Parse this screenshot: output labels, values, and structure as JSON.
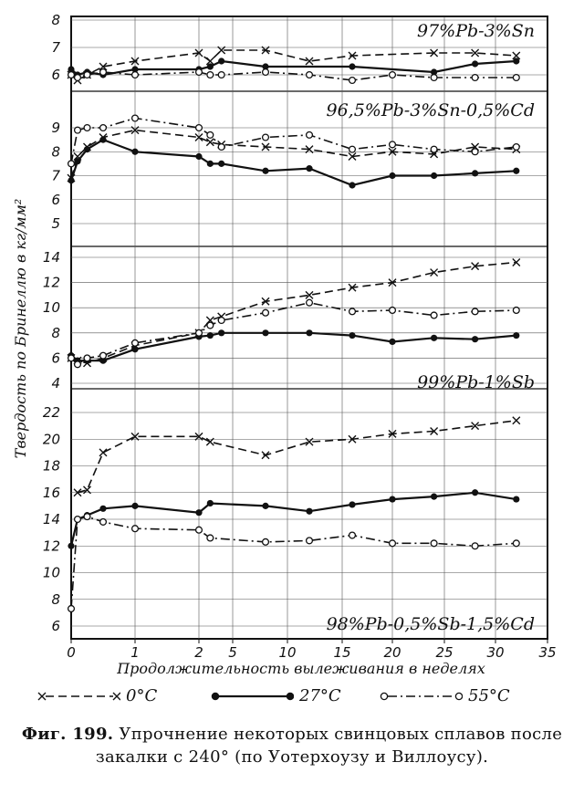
{
  "chart_data": {
    "type": "line",
    "xlabel": "Продолжительность вылеживания в неделях",
    "ylabel": "Твердость по Бринеллю в кг/мм²",
    "x_ticks": [
      "0",
      "1",
      "2",
      "5",
      "10",
      "15",
      "20",
      "25",
      "30",
      "35"
    ],
    "x_tick_values": [
      0,
      1,
      2,
      5,
      10,
      15,
      20,
      25,
      30,
      35
    ],
    "x_tick_note": "x axis is non-uniform: weeks 0–2 expanded, 2–35 compressed",
    "legend": [
      {
        "marker": "x",
        "line": "dashed",
        "label": "0°C"
      },
      {
        "marker": "filled-circle",
        "line": "solid",
        "label": "27°C"
      },
      {
        "marker": "open-circle",
        "line": "dash-dot",
        "label": "55°C"
      }
    ],
    "panels": [
      {
        "title": "97%Pb-3%Sn",
        "ylim": [
          6,
          8
        ],
        "y_ticks": [
          "8",
          "7",
          "6"
        ],
        "series": [
          {
            "name": "0°C",
            "x": [
              0,
              0.1,
              0.25,
              0.5,
              1,
              2,
              3,
              4,
              8,
              12,
              16,
              24,
              28,
              32
            ],
            "y": [
              6.0,
              5.8,
              6.0,
              6.3,
              6.5,
              6.8,
              6.5,
              6.9,
              6.9,
              6.5,
              6.7,
              6.8,
              6.8,
              6.7
            ]
          },
          {
            "name": "27°C",
            "x": [
              0,
              0.1,
              0.25,
              0.5,
              1,
              2,
              3,
              4,
              8,
              16,
              24,
              28,
              32
            ],
            "y": [
              6.2,
              6.0,
              6.1,
              6.0,
              6.2,
              6.2,
              6.3,
              6.5,
              6.3,
              6.3,
              6.1,
              6.4,
              6.5
            ]
          },
          {
            "name": "55°C",
            "x": [
              0,
              0.1,
              0.25,
              0.5,
              1,
              2,
              3,
              4,
              8,
              12,
              16,
              20,
              24,
              28,
              32
            ],
            "y": [
              6.0,
              5.9,
              6.0,
              6.1,
              6.0,
              6.1,
              6.0,
              6.0,
              6.1,
              6.0,
              5.8,
              6.0,
              5.9,
              5.9,
              5.9
            ]
          }
        ]
      },
      {
        "title": "96,5%Pb-3%Sn-0,5%Cd",
        "ylim": [
          5,
          9
        ],
        "y_ticks": [
          "9",
          "8",
          "7",
          "6",
          "5"
        ],
        "series": [
          {
            "name": "0°C",
            "x": [
              0,
              0.1,
              0.25,
              0.5,
              1,
              2,
              3,
              4,
              8,
              12,
              16,
              20,
              24,
              28,
              32
            ],
            "y": [
              6.9,
              7.8,
              8.2,
              8.6,
              8.9,
              8.6,
              8.4,
              8.3,
              8.2,
              8.1,
              7.8,
              8.0,
              7.9,
              8.2,
              8.1
            ]
          },
          {
            "name": "27°C",
            "x": [
              0,
              0.1,
              0.25,
              0.5,
              1,
              2,
              3,
              4,
              8,
              12,
              16,
              20,
              24,
              28,
              32
            ],
            "y": [
              6.8,
              7.6,
              8.1,
              8.5,
              8.0,
              7.8,
              7.5,
              7.5,
              7.2,
              7.3,
              6.6,
              7.0,
              7.0,
              7.1,
              7.2
            ]
          },
          {
            "name": "55°C",
            "x": [
              0,
              0.1,
              0.25,
              0.5,
              1,
              2,
              3,
              4,
              8,
              12,
              16,
              20,
              24,
              28,
              32
            ],
            "y": [
              7.5,
              8.9,
              9.0,
              9.0,
              9.4,
              9.0,
              8.7,
              8.2,
              8.6,
              8.7,
              8.1,
              8.3,
              8.1,
              8.0,
              8.2
            ]
          }
        ]
      },
      {
        "title": "99%Pb-1%Sb",
        "ylim": [
          4,
          14
        ],
        "y_ticks": [
          "14",
          "12",
          "10",
          "8",
          "6",
          "4"
        ],
        "series": [
          {
            "name": "0°C",
            "x": [
              0,
              0.1,
              0.25,
              0.5,
              1,
              2,
              3,
              4,
              8,
              12,
              16,
              20,
              24,
              28,
              32
            ],
            "y": [
              6.0,
              5.8,
              5.6,
              6.0,
              7.0,
              8.0,
              9.0,
              9.3,
              10.5,
              11.0,
              11.6,
              12.0,
              12.8,
              13.3,
              13.6
            ]
          },
          {
            "name": "27°C",
            "x": [
              0,
              0.1,
              0.25,
              0.5,
              1,
              2,
              3,
              4,
              8,
              12,
              16,
              20,
              24,
              28,
              32
            ],
            "y": [
              6.2,
              5.8,
              5.8,
              5.8,
              6.7,
              7.7,
              7.8,
              8.0,
              8.0,
              8.0,
              7.8,
              7.3,
              7.6,
              7.5,
              7.8
            ]
          },
          {
            "name": "55°C",
            "x": [
              0,
              0.1,
              0.25,
              0.5,
              1,
              2,
              3,
              4,
              8,
              12,
              16,
              20,
              24,
              28,
              32
            ],
            "y": [
              6.0,
              5.5,
              6.0,
              6.2,
              7.2,
              8.0,
              8.6,
              9.0,
              9.6,
              10.4,
              9.7,
              9.8,
              9.4,
              9.7,
              9.8
            ]
          }
        ]
      },
      {
        "title": "98%Pb-0,5%Sb-1,5%Cd",
        "ylim": [
          6,
          22
        ],
        "y_ticks": [
          "22",
          "20",
          "18",
          "16",
          "14",
          "12",
          "10",
          "8",
          "6"
        ],
        "series": [
          {
            "name": "0°C",
            "x": [
              0.1,
              0.25,
              0.5,
              1,
              2,
              3,
              8,
              12,
              16,
              20,
              24,
              28,
              32
            ],
            "y": [
              16.0,
              16.2,
              19.0,
              20.2,
              20.2,
              19.8,
              18.8,
              19.8,
              20.0,
              20.4,
              20.6,
              21.0,
              21.4
            ]
          },
          {
            "name": "27°C",
            "x": [
              0,
              0.1,
              0.25,
              0.5,
              1,
              2,
              3,
              8,
              12,
              16,
              20,
              24,
              28,
              32
            ],
            "y": [
              12.0,
              14.0,
              14.3,
              14.8,
              15.0,
              14.5,
              15.2,
              15.0,
              14.6,
              15.1,
              15.5,
              15.7,
              16.0,
              15.5
            ]
          },
          {
            "name": "55°C",
            "x": [
              0,
              0.1,
              0.25,
              0.5,
              1,
              2,
              3,
              8,
              12,
              16,
              20,
              24,
              28,
              32
            ],
            "y": [
              7.3,
              14.0,
              14.2,
              13.8,
              13.3,
              13.2,
              12.6,
              12.3,
              12.4,
              12.8,
              12.2,
              12.2,
              12.0,
              12.2
            ]
          }
        ]
      }
    ]
  },
  "caption": {
    "label": "Фиг. 199.",
    "text": "Упрочнение некоторых свинцовых сплавов после закалки с 240° (по Уотерхоузу и Виллоусу)."
  }
}
